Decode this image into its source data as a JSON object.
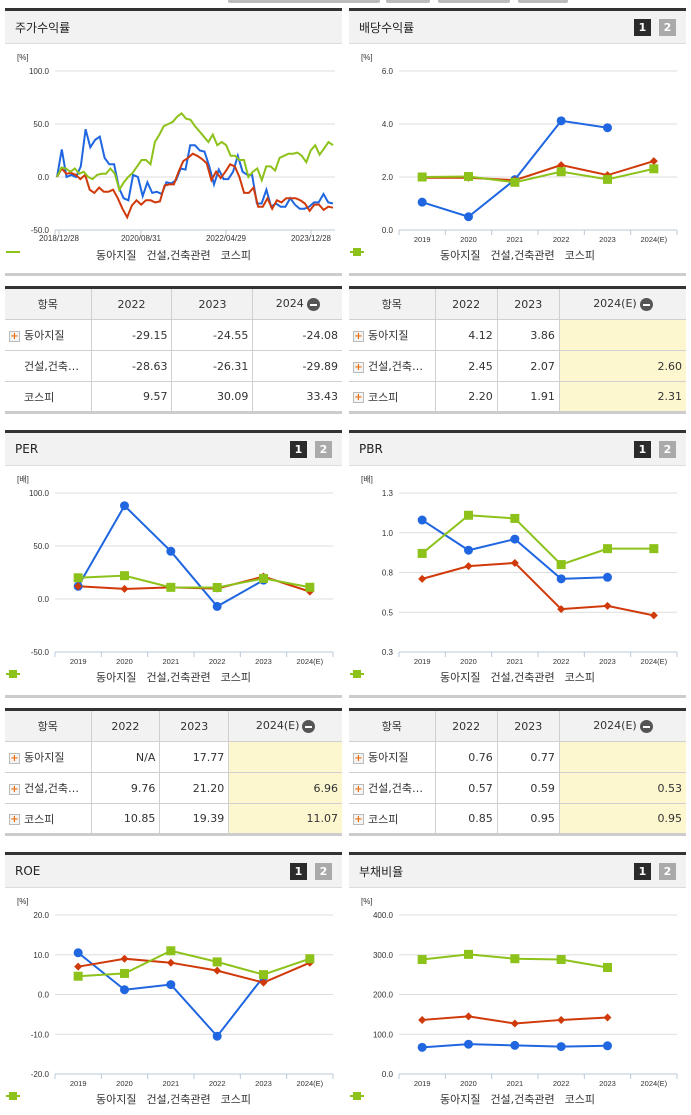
{
  "colors": {
    "dongah": "#1f66e0",
    "construction": "#d03a0a",
    "kospi": "#8cc21a"
  },
  "legend": {
    "dongah": "동아지질",
    "construction": "건설,건축관련",
    "kospi": "코스피"
  },
  "panels": {
    "stock_return": {
      "title": "주가수익률",
      "unit": "[%]"
    },
    "dividend": {
      "title": "배당수익률",
      "unit": "[%]",
      "btn1": "1",
      "btn2": "2"
    },
    "per": {
      "title": "PER",
      "unit": "[배]",
      "btn1": "1",
      "btn2": "2"
    },
    "pbr": {
      "title": "PBR",
      "unit": "[배]",
      "btn1": "1",
      "btn2": "2"
    },
    "roe": {
      "title": "ROE",
      "unit": "[%]",
      "btn1": "1",
      "btn2": "2"
    },
    "debt": {
      "title": "부채비율",
      "unit": "[%]",
      "btn1": "1",
      "btn2": "2"
    }
  },
  "tables": {
    "stock_return": {
      "headers": [
        "항목",
        "2022",
        "2023",
        "2024"
      ],
      "rows": [
        {
          "name": "동아지질",
          "values": [
            "-29.15",
            "-24.55",
            "-24.08"
          ]
        },
        {
          "name": "건설,건축…",
          "values": [
            "-28.63",
            "-26.31",
            "-29.89"
          ]
        },
        {
          "name": "코스피",
          "values": [
            "9.57",
            "30.09",
            "33.43"
          ]
        }
      ]
    },
    "dividend": {
      "headers": [
        "항목",
        "2022",
        "2023",
        "2024(E)"
      ],
      "rows": [
        {
          "name": "동아지질",
          "values": [
            "4.12",
            "3.86",
            ""
          ]
        },
        {
          "name": "건설,건축…",
          "values": [
            "2.45",
            "2.07",
            "2.60"
          ]
        },
        {
          "name": "코스피",
          "values": [
            "2.20",
            "1.91",
            "2.31"
          ]
        }
      ]
    },
    "per": {
      "headers": [
        "항목",
        "2022",
        "2023",
        "2024(E)"
      ],
      "rows": [
        {
          "name": "동아지질",
          "values": [
            "N/A",
            "17.77",
            ""
          ]
        },
        {
          "name": "건설,건축…",
          "values": [
            "9.76",
            "21.20",
            "6.96"
          ]
        },
        {
          "name": "코스피",
          "values": [
            "10.85",
            "19.39",
            "11.07"
          ]
        }
      ]
    },
    "pbr": {
      "headers": [
        "항목",
        "2022",
        "2023",
        "2024(E)"
      ],
      "rows": [
        {
          "name": "동아지질",
          "values": [
            "0.76",
            "0.77",
            ""
          ]
        },
        {
          "name": "건설,건축…",
          "values": [
            "0.57",
            "0.59",
            "0.53"
          ]
        },
        {
          "name": "코스피",
          "values": [
            "0.85",
            "0.95",
            "0.95"
          ]
        }
      ]
    }
  },
  "chart_data": [
    {
      "type": "line",
      "title": "주가수익률",
      "ylabel": "[%]",
      "ylim": [
        -50,
        100
      ],
      "yticks": [
        "100.0",
        "50.0",
        "0.0",
        "-50.0"
      ],
      "x_tick_labels": [
        "2018/12/28",
        "2020/08/31",
        "2022/04/29",
        "2023/12/28"
      ],
      "grid": true,
      "legend_position": "bottom",
      "series": [
        {
          "name": "동아지질",
          "values": [
            0,
            26,
            0,
            2,
            0,
            10,
            45,
            28,
            35,
            38,
            18,
            12,
            12,
            -10,
            -20,
            -22,
            2,
            0,
            -18,
            -5,
            -15,
            -14,
            -16,
            -5,
            -6,
            -3,
            8,
            7,
            30,
            30,
            25,
            24,
            10,
            -7,
            7,
            -2,
            -2,
            5,
            20,
            5,
            2,
            2,
            -25,
            -25,
            -12,
            -28,
            -25,
            -28,
            -28,
            -20,
            -26,
            -30,
            -30,
            -28,
            -24,
            -24,
            -16,
            -24,
            -25
          ]
        },
        {
          "name": "건설,건축관련",
          "values": [
            0,
            8,
            3,
            4,
            2,
            -2,
            2,
            -12,
            -15,
            -10,
            -14,
            -14,
            -12,
            -20,
            -30,
            -38,
            -27,
            -22,
            -26,
            -22,
            -22,
            -24,
            -23,
            -8,
            -7,
            -7,
            5,
            15,
            18,
            22,
            20,
            17,
            13,
            -3,
            5,
            -1,
            5,
            12,
            10,
            0,
            -15,
            -15,
            -10,
            -28,
            -28,
            -20,
            -30,
            -22,
            -24,
            -20,
            -20,
            -20,
            -22,
            -25,
            -32,
            -26,
            -26,
            -31,
            -28,
            -29
          ]
        },
        {
          "name": "코스피",
          "values": [
            0,
            9,
            8,
            5,
            8,
            3,
            5,
            0,
            -2,
            2,
            3,
            3,
            8,
            3,
            -12,
            -5,
            0,
            4,
            10,
            16,
            16,
            12,
            33,
            40,
            48,
            50,
            52,
            57,
            60,
            55,
            54,
            48,
            43,
            38,
            33,
            40,
            30,
            33,
            30,
            20,
            20,
            16,
            16,
            0,
            5,
            8,
            -3,
            10,
            10,
            6,
            18,
            20,
            22,
            22,
            23,
            20,
            14,
            25,
            30,
            21,
            27,
            33,
            30
          ]
        }
      ]
    },
    {
      "type": "line",
      "title": "배당수익률",
      "ylabel": "[%]",
      "ylim": [
        0,
        6
      ],
      "yticks": [
        "6.0",
        "4.0",
        "2.0",
        "0.0"
      ],
      "categories": [
        "2019",
        "2020",
        "2021",
        "2022",
        "2023",
        "2024(E)"
      ],
      "series": [
        {
          "name": "동아지질",
          "values": [
            1.05,
            0.5,
            1.9,
            4.12,
            3.86,
            null
          ]
        },
        {
          "name": "건설,건축관련",
          "values": [
            1.97,
            1.97,
            1.88,
            2.45,
            2.07,
            2.6
          ]
        },
        {
          "name": "코스피",
          "values": [
            2.0,
            2.02,
            1.8,
            2.2,
            1.91,
            2.31
          ]
        }
      ]
    },
    {
      "type": "line",
      "title": "PER",
      "ylabel": "[배]",
      "ylim": [
        -50,
        100
      ],
      "yticks": [
        "100.0",
        "50.0",
        "0.0",
        "-50.0"
      ],
      "categories": [
        "2019",
        "2020",
        "2021",
        "2022",
        "2023",
        "2024(E)"
      ],
      "series": [
        {
          "name": "동아지질",
          "values": [
            12,
            88,
            45,
            -7,
            17.77,
            null
          ]
        },
        {
          "name": "건설,건축관련",
          "values": [
            12,
            9.5,
            11,
            9.76,
            21.2,
            6.96
          ]
        },
        {
          "name": "코스피",
          "values": [
            20,
            22,
            11,
            10.85,
            19.39,
            11.07
          ]
        }
      ]
    },
    {
      "type": "line",
      "title": "PBR",
      "ylabel": "[배]",
      "ylim": [
        0.3,
        1.3
      ],
      "yticks": [
        "1.3",
        "1.0",
        "0.8",
        "0.5",
        "0.3"
      ],
      "categories": [
        "2019",
        "2020",
        "2021",
        "2022",
        "2023",
        "2024(E)"
      ],
      "series": [
        {
          "name": "동아지질",
          "values": [
            1.13,
            0.94,
            1.01,
            0.76,
            0.77,
            null
          ]
        },
        {
          "name": "건설,건축관련",
          "values": [
            0.76,
            0.84,
            0.86,
            0.57,
            0.59,
            0.53
          ]
        },
        {
          "name": "코스피",
          "values": [
            0.92,
            1.16,
            1.14,
            0.85,
            0.95,
            0.95
          ]
        }
      ]
    },
    {
      "type": "line",
      "title": "ROE",
      "ylabel": "[%]",
      "ylim": [
        -20,
        20
      ],
      "yticks": [
        "20.0",
        "10.0",
        "0.0",
        "-10.0",
        "-20.0"
      ],
      "categories": [
        "2019",
        "2020",
        "2021",
        "2022",
        "2023",
        "2024(E)"
      ],
      "series": [
        {
          "name": "동아지질",
          "values": [
            10.5,
            1.2,
            2.5,
            -10.5,
            4.5,
            null
          ]
        },
        {
          "name": "건설,건축관련",
          "values": [
            7.0,
            9.0,
            8.0,
            6.0,
            3.0,
            8.0
          ]
        },
        {
          "name": "코스피",
          "values": [
            4.6,
            5.3,
            11.0,
            8.2,
            5.0,
            9.0
          ]
        }
      ]
    },
    {
      "type": "line",
      "title": "부채비율",
      "ylabel": "[%]",
      "ylim": [
        0,
        400
      ],
      "yticks": [
        "400.0",
        "300.0",
        "200.0",
        "100.0",
        "0.0"
      ],
      "categories": [
        "2019",
        "2020",
        "2021",
        "2022",
        "2023",
        "2024(E)"
      ],
      "series": [
        {
          "name": "동아지질",
          "values": [
            67,
            75,
            72,
            69,
            71,
            null
          ]
        },
        {
          "name": "건설,건축관련",
          "values": [
            136,
            145,
            127,
            136,
            142,
            null
          ]
        },
        {
          "name": "코스피",
          "values": [
            288,
            301,
            290,
            288,
            268,
            null
          ]
        }
      ]
    }
  ]
}
